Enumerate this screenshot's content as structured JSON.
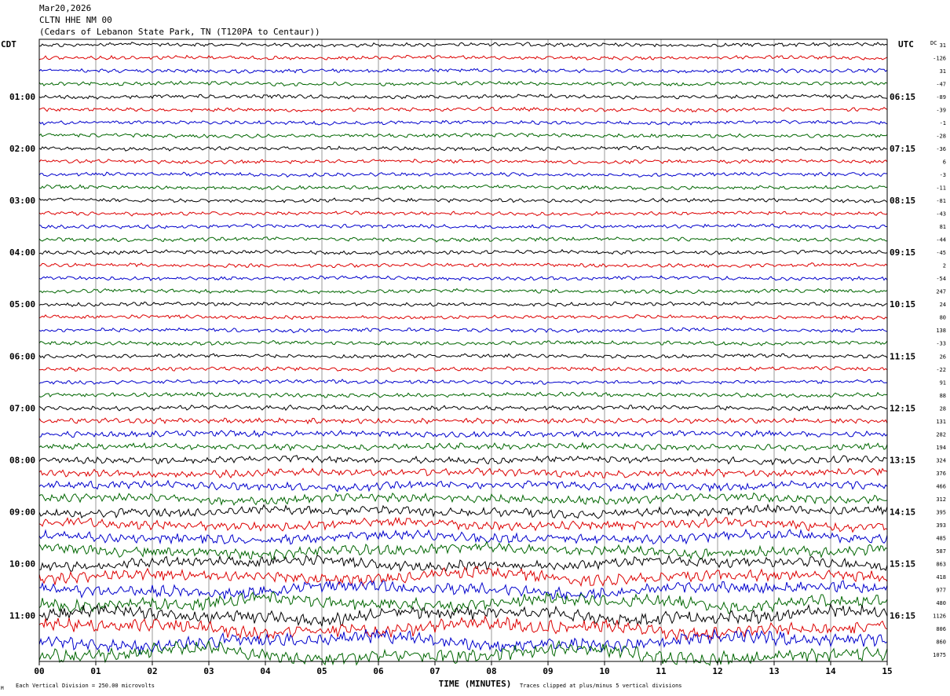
{
  "header": {
    "date": "Mar20,2026",
    "station": "CLTN HHE NM 00",
    "location": "(Cedars of Lebanon State Park, TN (T120PA to Centaur))"
  },
  "chart_data": {
    "type": "line",
    "left_axis_label": "CDT",
    "right_axis_label": "UTC",
    "dc_label": "DC",
    "xlabel": "TIME (MINUTES)",
    "x_ticks": [
      "00",
      "01",
      "02",
      "03",
      "04",
      "05",
      "06",
      "07",
      "08",
      "09",
      "10",
      "11",
      "12",
      "13",
      "14",
      "15"
    ],
    "xlim": [
      0,
      15
    ],
    "left_hour_labels": [
      "01:00",
      "02:00",
      "03:00",
      "04:00",
      "05:00",
      "06:00",
      "07:00",
      "08:00",
      "09:00",
      "10:00",
      "11:00"
    ],
    "right_hour_labels": [
      "06:15",
      "07:15",
      "08:15",
      "09:15",
      "10:15",
      "11:15",
      "12:15",
      "13:15",
      "14:15",
      "15:15",
      "16:15"
    ],
    "dc_offsets": [
      "31",
      "-126",
      "31",
      "-47",
      "-89",
      "-39",
      "-1",
      "-28",
      "-36",
      "6",
      "-3",
      "-11",
      "-81",
      "-43",
      "81",
      "-44",
      "-45",
      "2",
      "-54",
      "247",
      "24",
      "80",
      "138",
      "-33",
      "26",
      "-22",
      "91",
      "88",
      "28",
      "131",
      "282",
      "194",
      "324",
      "376",
      "466",
      "312",
      "395",
      "393",
      "485",
      "587",
      "863",
      "418",
      "977",
      "480",
      "1126",
      "806",
      "860",
      "1075"
    ],
    "trace_colors": [
      "#000000",
      "#dd0000",
      "#0000cc",
      "#006600"
    ],
    "footer_left": "Each Vertical Division =  250.00 microvolts",
    "footer_right": "Traces clipped at plus/minus 5 vertical divisions",
    "corner_mark": "M"
  }
}
